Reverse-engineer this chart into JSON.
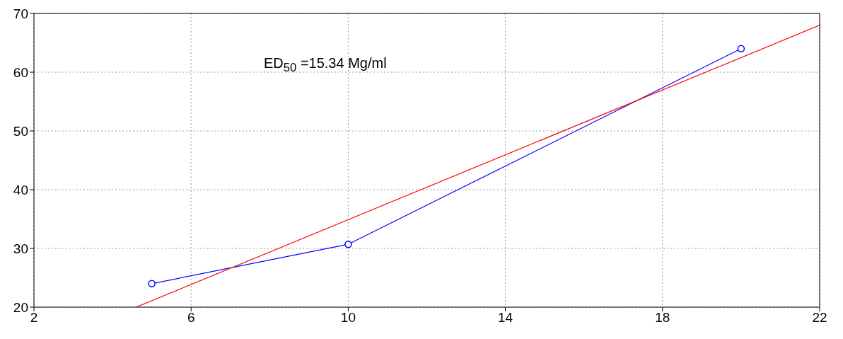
{
  "chart_data": {
    "type": "line",
    "annotations": [
      "ED$_{50}$ =15.34 Mg/ml"
    ],
    "xlim": [
      2,
      22
    ],
    "xticks": [
      2,
      6,
      10,
      14,
      18,
      22
    ],
    "ylim": [
      20,
      70
    ],
    "yticks": [
      20,
      30,
      40,
      50,
      60,
      70
    ],
    "grid": true,
    "series": [
      {
        "color": "#0000ff",
        "x": [
          5,
          10,
          20
        ],
        "values": [
          24,
          30.7,
          64
        ],
        "marker": "circle"
      },
      {
        "color": "#ff0000",
        "x": [
          4.6,
          22
        ],
        "values": [
          20,
          68
        ],
        "marker": "none"
      }
    ]
  }
}
